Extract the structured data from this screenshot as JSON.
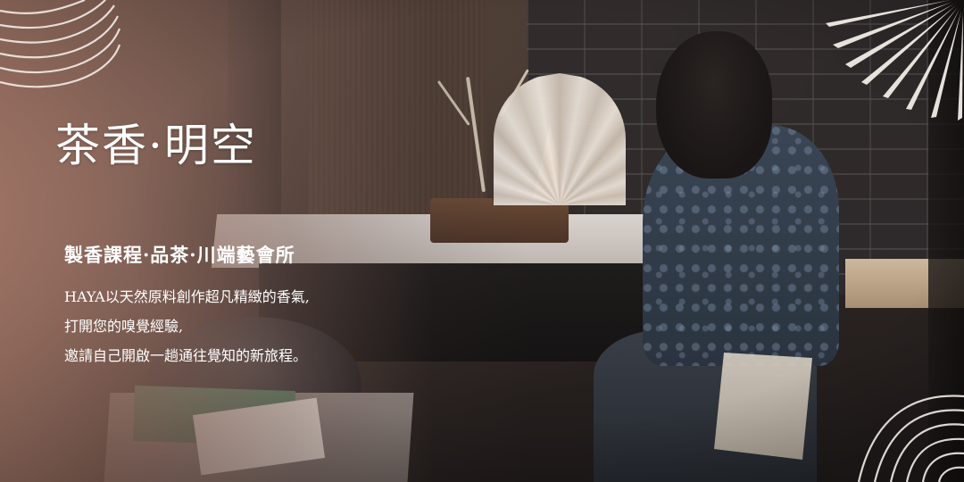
{
  "banner": {
    "title": "茶香·明空",
    "subtitle": "製香課程·品茶·川端藝會所",
    "description": [
      "HAYA以天然原料創作超凡精緻的香氣,",
      "打開您的嗅覺經驗,",
      "邀請自己開啟一趟通往覺知的新旅程。"
    ]
  },
  "colors": {
    "text": "#ffffff",
    "overlay_warm": "#b98a76",
    "deco_line": "#f3ece6"
  },
  "icons": {
    "top_left": "wave-lines-icon",
    "top_right": "palm-leaf-icon",
    "bottom_right": "wave-lines-icon"
  }
}
